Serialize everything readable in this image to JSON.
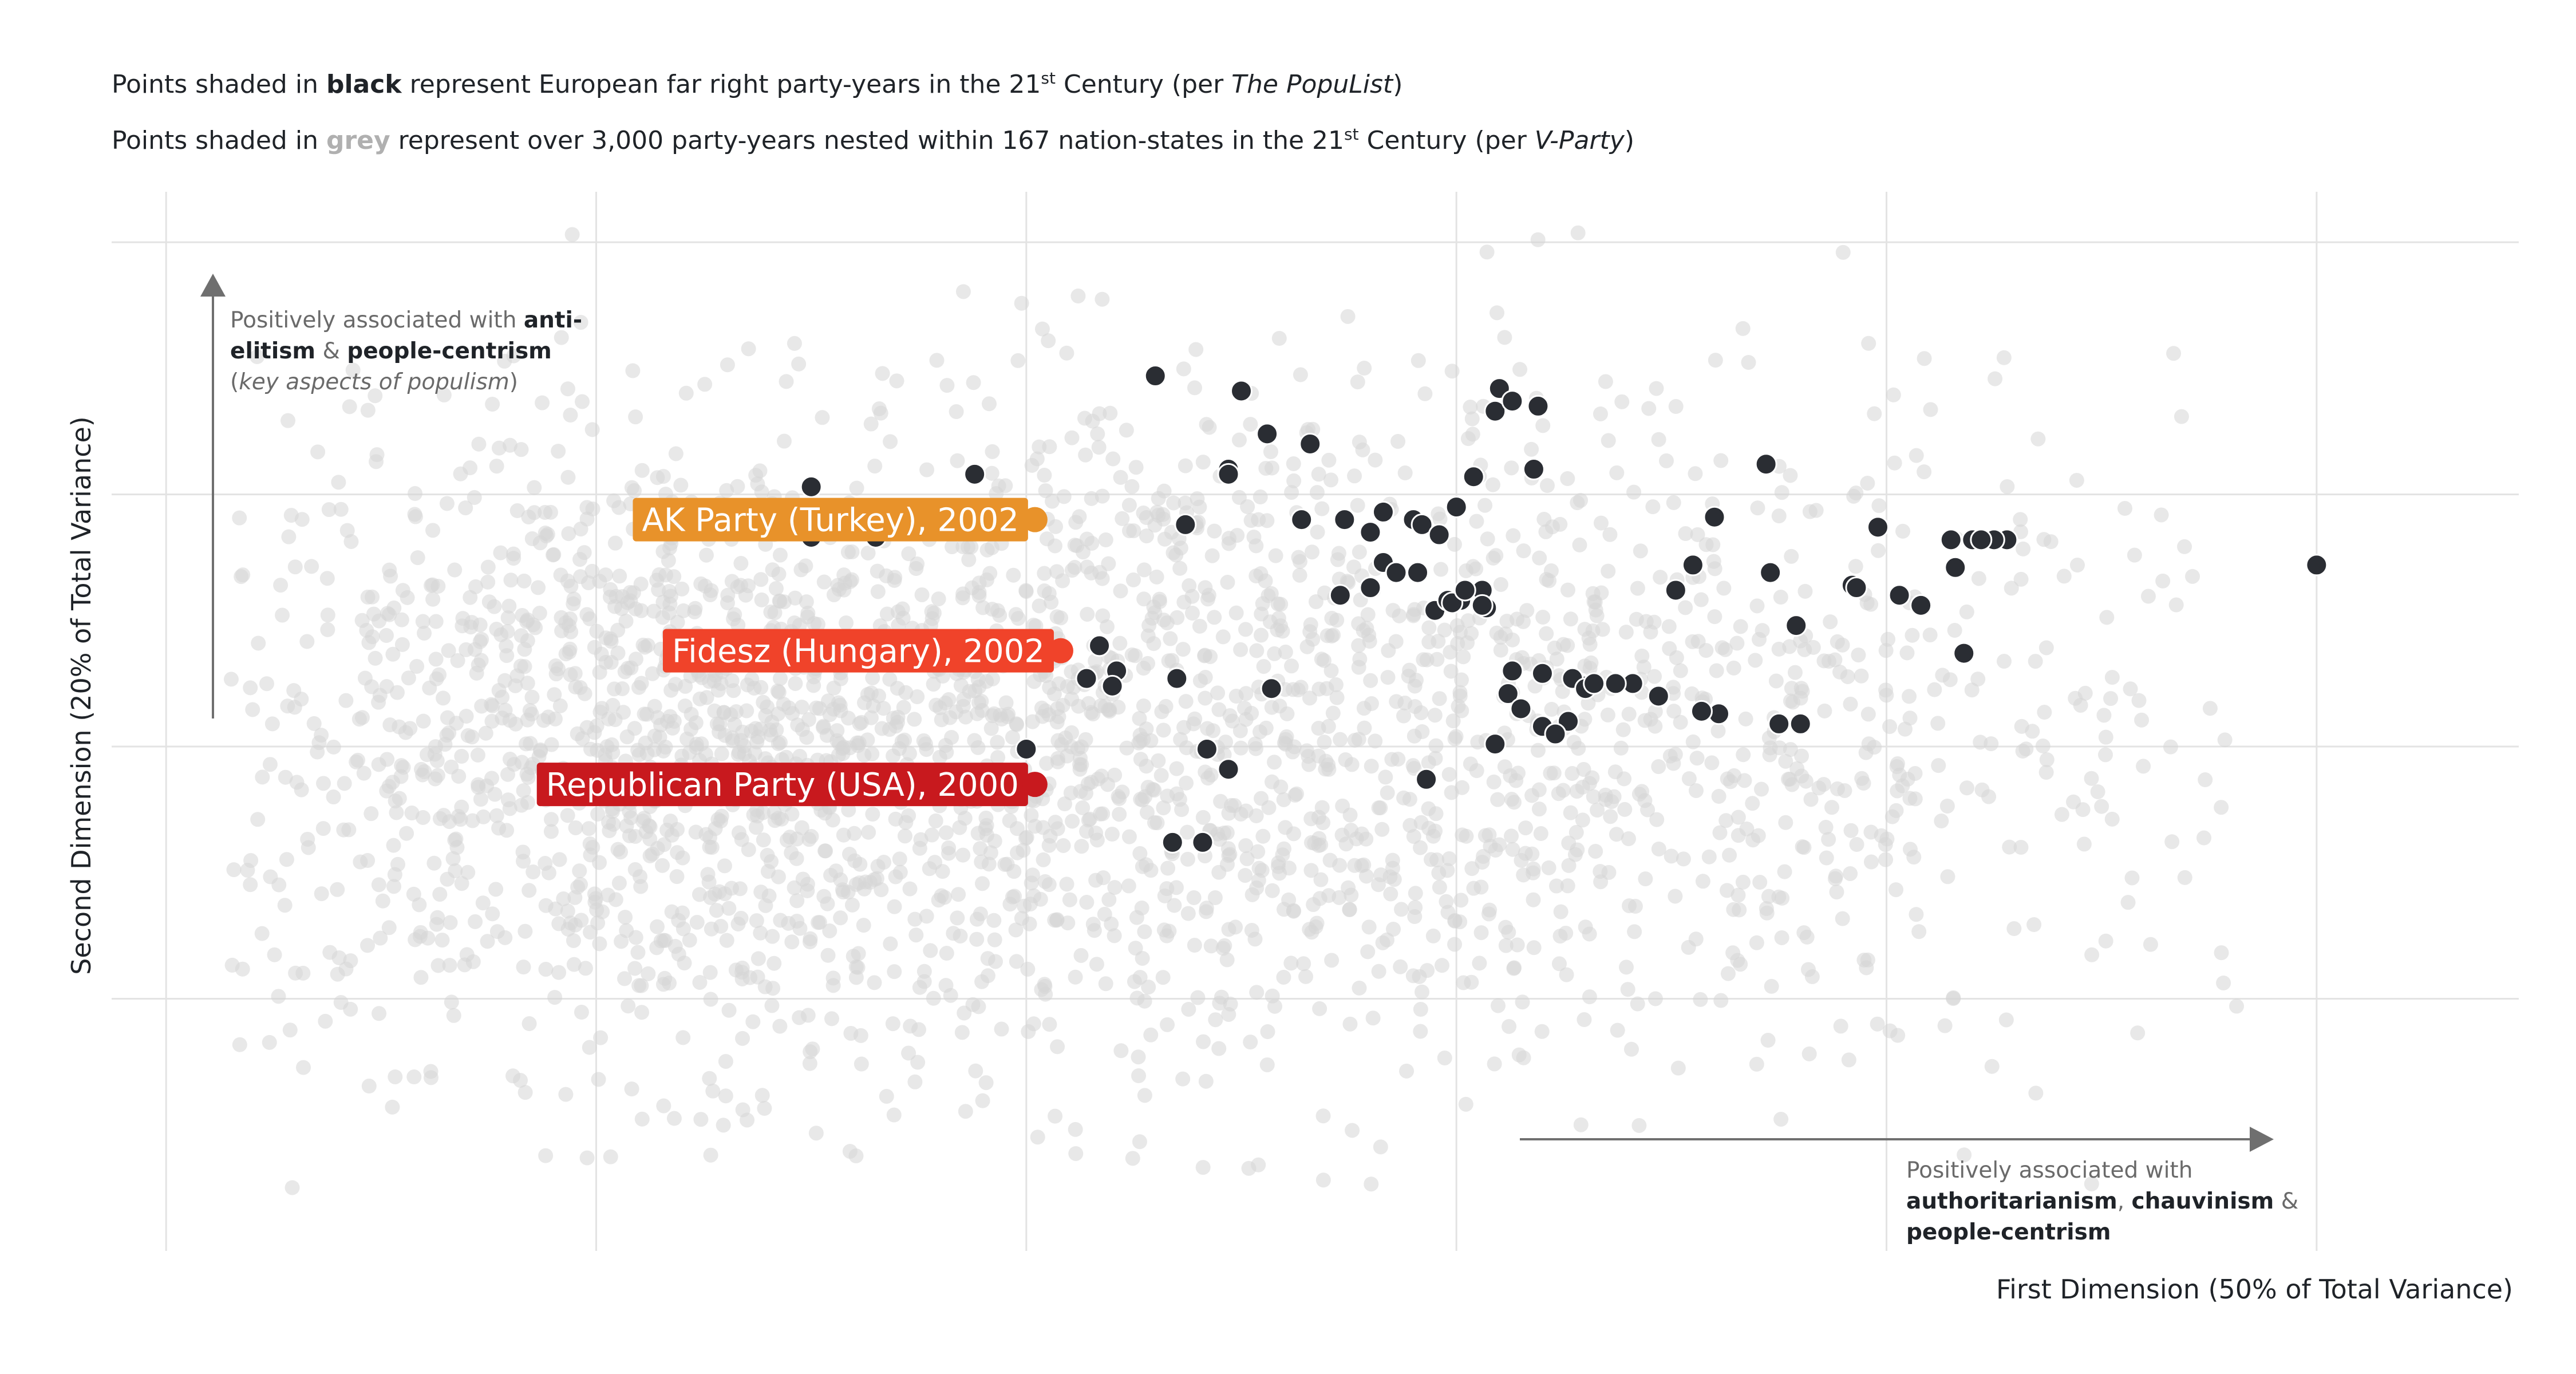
{
  "title_lines": [
    {
      "parts": [
        {
          "text": "Points shaded in ",
          "style": "normal"
        },
        {
          "text": "black",
          "style": "bold"
        },
        {
          "text": " represent European far right party-years in the 21",
          "style": "normal"
        },
        {
          "text": "st",
          "style": "sup"
        },
        {
          "text": " Century (per ",
          "style": "normal"
        },
        {
          "text": "The PopuList",
          "style": "italic"
        },
        {
          "text": ")",
          "style": "normal"
        }
      ]
    },
    {
      "parts": [
        {
          "text": "Points shaded in ",
          "style": "normal"
        },
        {
          "text": "grey",
          "style": "bold-grey"
        },
        {
          "text": " represent over 3,000 party-years nested within 167 nation-states in the 21",
          "style": "normal"
        },
        {
          "text": "st",
          "style": "sup"
        },
        {
          "text": " Century (per ",
          "style": "normal"
        },
        {
          "text": "V-Party",
          "style": "italic"
        },
        {
          "text": ")",
          "style": "normal"
        }
      ]
    }
  ],
  "y_axis_label": "Second Dimension (20% of Total Variance)",
  "x_axis_label": "First Dimension (50% of Total Variance)",
  "annotation_y": {
    "lines": [
      [
        {
          "text": "Positively associated with ",
          "style": "normal"
        },
        {
          "text": "anti-",
          "style": "bold"
        }
      ],
      [
        {
          "text": "elitism",
          "style": "bold"
        },
        {
          "text": " & ",
          "style": "normal"
        },
        {
          "text": "people-centrism",
          "style": "bold"
        }
      ],
      [
        {
          "text": "(",
          "style": "normal"
        },
        {
          "text": "key aspects of populism",
          "style": "italic"
        },
        {
          "text": ")",
          "style": "normal"
        }
      ]
    ]
  },
  "annotation_x": {
    "lines": [
      [
        {
          "text": "Positively associated with",
          "style": "normal"
        }
      ],
      [
        {
          "text": "authoritarianism",
          "style": "bold"
        },
        {
          "text": ", ",
          "style": "normal"
        },
        {
          "text": "chauvinism",
          "style": "bold"
        },
        {
          "text": " &",
          "style": "normal"
        }
      ],
      [
        {
          "text": "people-centrism",
          "style": "bold"
        }
      ]
    ]
  },
  "colors": {
    "grey_points": "#d6d6d6",
    "black_points": "#2a2d33",
    "akp": "#e8922a",
    "fidesz": "#f0432a",
    "republican": "#c8191e",
    "arrow": "#6f6f6f"
  },
  "chart_data": {
    "type": "scatter",
    "grid": true,
    "x_gridlines": [
      -2,
      -1,
      0,
      1,
      2,
      3
    ],
    "y_gridlines": [
      2,
      1,
      0,
      -1
    ],
    "xlim": [
      -2.12,
      3.47
    ],
    "ylim": [
      -2.0,
      2.2
    ],
    "highlights": [
      {
        "label": "AK Party (Turkey), 2002",
        "x": 0.02,
        "y": 0.9,
        "color": "akp"
      },
      {
        "label": "Fidesz (Hungary), 2002",
        "x": 0.08,
        "y": 0.38,
        "color": "fidesz"
      },
      {
        "label": "Republican Party (USA), 2000",
        "x": 0.02,
        "y": -0.15,
        "color": "republican"
      }
    ],
    "black_series": {
      "name": "European far right party-years (The PopuList)",
      "x": [
        -0.5,
        -0.5,
        -0.35,
        -0.12,
        0.3,
        0.5,
        0.47,
        0.47,
        0.56,
        0.66,
        0.64,
        0.74,
        0.83,
        0.8,
        0.9,
        0.92,
        0.96,
        1.0,
        1.04,
        1.1,
        1.09,
        1.13,
        1.19,
        1.18,
        0.8,
        0.73,
        0.83,
        0.86,
        0.91,
        0.95,
        1.01,
        0.98,
        1.06,
        1.07,
        1.2,
        1.3,
        1.41,
        1.47,
        1.37,
        1.61,
        1.57,
        1.8,
        1.75,
        1.51,
        1.55,
        1.73,
        1.92,
        2.08,
        2.03,
        1.13,
        1.12,
        1.15,
        1.27,
        1.3,
        1.32,
        1.26,
        1.2,
        1.23,
        1.09,
        0.93,
        0.17,
        0.21,
        0.14,
        0.2,
        0.35,
        0.42,
        0.57,
        0.0,
        0.41,
        0.47,
        0.34,
        0.37,
        2.2,
        2.28,
        2.25,
        2.15,
        2.18,
        2.16,
        2.22,
        3.0,
        1.72,
        1.6,
        1.98,
        1.93,
        1.79,
        1.06,
        0.99,
        1.02
      ],
      "y": [
        1.03,
        0.83,
        0.83,
        1.08,
        1.47,
        1.41,
        1.1,
        1.08,
        1.24,
        1.2,
        0.9,
        0.9,
        0.93,
        0.85,
        0.9,
        0.88,
        0.84,
        0.95,
        1.07,
        1.42,
        1.33,
        1.37,
        1.35,
        1.1,
        0.63,
        0.6,
        0.73,
        0.69,
        0.69,
        0.54,
        0.58,
        0.58,
        0.62,
        0.55,
        0.29,
        0.24,
        0.25,
        0.2,
        0.25,
        0.13,
        0.14,
        0.09,
        0.09,
        0.62,
        0.72,
        0.69,
        0.64,
        0.56,
        0.6,
        0.3,
        0.21,
        0.15,
        0.27,
        0.23,
        0.25,
        0.1,
        0.08,
        0.05,
        0.01,
        -0.13,
        0.4,
        0.3,
        0.27,
        0.24,
        0.27,
        -0.01,
        0.23,
        -0.01,
        -0.38,
        -0.09,
        -0.38,
        0.88,
        0.82,
        0.82,
        0.82,
        0.82,
        0.37,
        0.71,
        0.82,
        0.72,
        1.12,
        0.91,
        0.87,
        0.63,
        0.48,
        0.56,
        0.57,
        0.62
      ]
    },
    "grey_series": {
      "name": "party-years nested within 167 nation-states (V-Party)",
      "cloud": [
        {
          "cx": -0.75,
          "cy": 0.0,
          "sx": 0.7,
          "sy": 0.62,
          "n": 1500
        },
        {
          "cx": 0.55,
          "cy": 0.05,
          "sx": 0.85,
          "sy": 0.7,
          "n": 1200
        },
        {
          "cx": 1.6,
          "cy": 0.1,
          "sx": 0.8,
          "sy": 0.75,
          "n": 350
        }
      ]
    }
  }
}
